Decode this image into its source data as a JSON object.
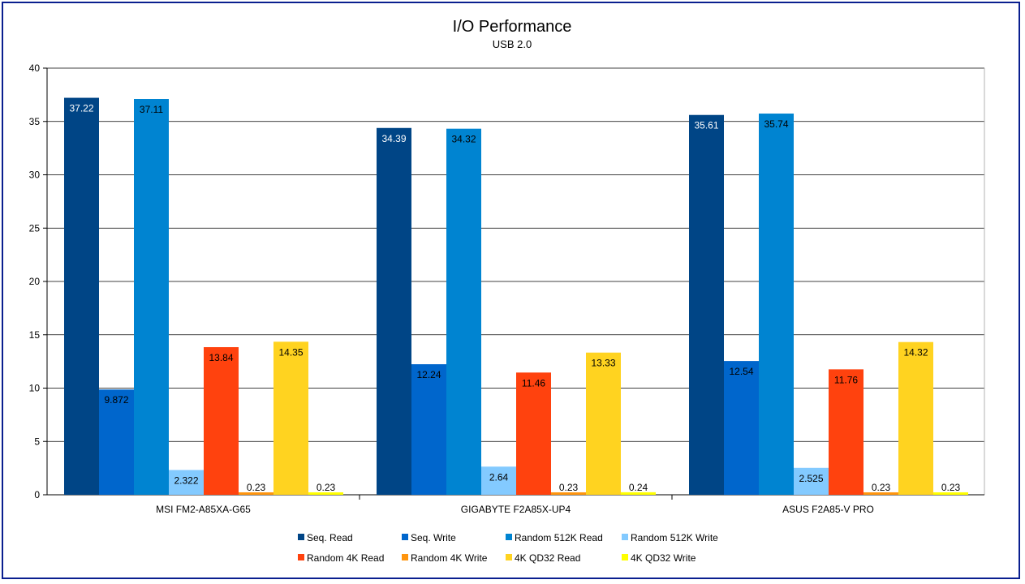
{
  "chart_data": {
    "type": "bar",
    "title": "I/O Performance",
    "subtitle": "USB 2.0",
    "xlabel": "",
    "ylabel": "",
    "ylim": [
      0,
      40
    ],
    "yticks": [
      "0",
      "5",
      "10",
      "15",
      "20",
      "25",
      "30",
      "35",
      "40"
    ],
    "grid": true,
    "legend_position": "bottom",
    "categories": [
      "MSI FM2-A85XA-G65",
      "GIGABYTE F2A85X-UP4",
      "ASUS F2A85-V PRO"
    ],
    "series": [
      {
        "name": "Seq. Read",
        "color": "#004586",
        "label_color": "#ffffff",
        "values": [
          37.22,
          34.39,
          35.61
        ],
        "labels": [
          "37.22",
          "34.39",
          "35.61"
        ]
      },
      {
        "name": "Seq. Write",
        "color": "#0066cc",
        "label_color": "#000000",
        "values": [
          9.872,
          12.24,
          12.54
        ],
        "labels": [
          "9.872",
          "12.24",
          "12.54"
        ]
      },
      {
        "name": "Random 512K Read",
        "color": "#0084d1",
        "label_color": "#000000",
        "values": [
          37.11,
          34.32,
          35.74
        ],
        "labels": [
          "37.11",
          "34.32",
          "35.74"
        ]
      },
      {
        "name": "Random 512K Write",
        "color": "#83caff",
        "label_color": "#000000",
        "values": [
          2.322,
          2.64,
          2.525
        ],
        "labels": [
          "2.322",
          "2.64",
          "2.525"
        ]
      },
      {
        "name": "Random 4K Read",
        "color": "#ff420e",
        "label_color": "#000000",
        "values": [
          13.84,
          11.46,
          11.76
        ],
        "labels": [
          "13.84",
          "11.46",
          "11.76"
        ]
      },
      {
        "name": "Random 4K Write",
        "color": "#ff950e",
        "label_color": "#000000",
        "values": [
          0.23,
          0.23,
          0.23
        ],
        "labels": [
          "0.23",
          "0.23",
          "0.23"
        ]
      },
      {
        "name": "4K QD32 Read",
        "color": "#ffd320",
        "label_color": "#000000",
        "values": [
          14.35,
          13.33,
          14.32
        ],
        "labels": [
          "14.35",
          "13.33",
          "14.32"
        ]
      },
      {
        "name": "4K QD32 Write",
        "color": "#ffff00",
        "label_color": "#000000",
        "values": [
          0.23,
          0.24,
          0.23
        ],
        "labels": [
          "0.23",
          "0.24",
          "0.23"
        ]
      }
    ]
  }
}
